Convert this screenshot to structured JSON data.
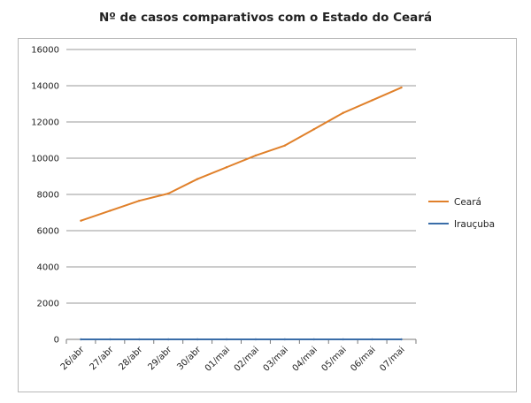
{
  "chart_data": {
    "type": "line",
    "title": "Nº de casos comparativos com o Estado do Ceará",
    "xlabel": "",
    "ylabel": "",
    "categories": [
      "26/abr",
      "27/abr",
      "28/abr",
      "29/abr",
      "30/abr",
      "01/mai",
      "02/mai",
      "03/mai",
      "04/mai",
      "05/mai",
      "06/mai",
      "07/mai"
    ],
    "ylim": [
      0,
      16000
    ],
    "yticks": [
      "0",
      "2000",
      "4000",
      "6000",
      "8000",
      "10000",
      "12000",
      "14000",
      "16000"
    ],
    "grid": true,
    "legend_position": "right",
    "series": [
      {
        "name": "Ceará",
        "color": "#e0802a",
        "values": [
          6550,
          7100,
          7650,
          8050,
          8850,
          9500,
          10150,
          10700,
          11600,
          12500,
          13200,
          13900
        ]
      },
      {
        "name": "Irauçuba",
        "color": "#3a6da8",
        "values": [
          0,
          0,
          0,
          0,
          0,
          0,
          0,
          0,
          0,
          0,
          0,
          0
        ]
      }
    ]
  }
}
